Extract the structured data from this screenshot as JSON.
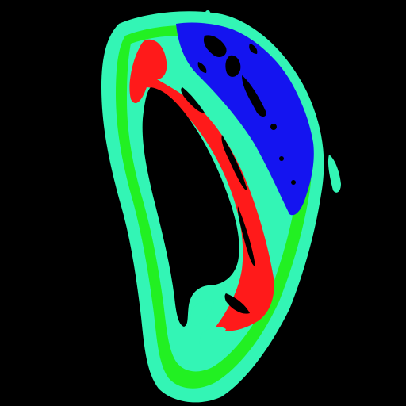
{
  "image": {
    "description_type": "segmentation-mask",
    "background": "#000000",
    "regions": [
      {
        "name": "outer-rim",
        "color": "#33F5B5"
      },
      {
        "name": "middle-band",
        "color": "#22F022"
      },
      {
        "name": "inner-red-wall",
        "color": "#FF1A1A"
      },
      {
        "name": "blue-region",
        "color": "#1414F0"
      },
      {
        "name": "inner-cavity",
        "color": "#000000"
      }
    ]
  }
}
